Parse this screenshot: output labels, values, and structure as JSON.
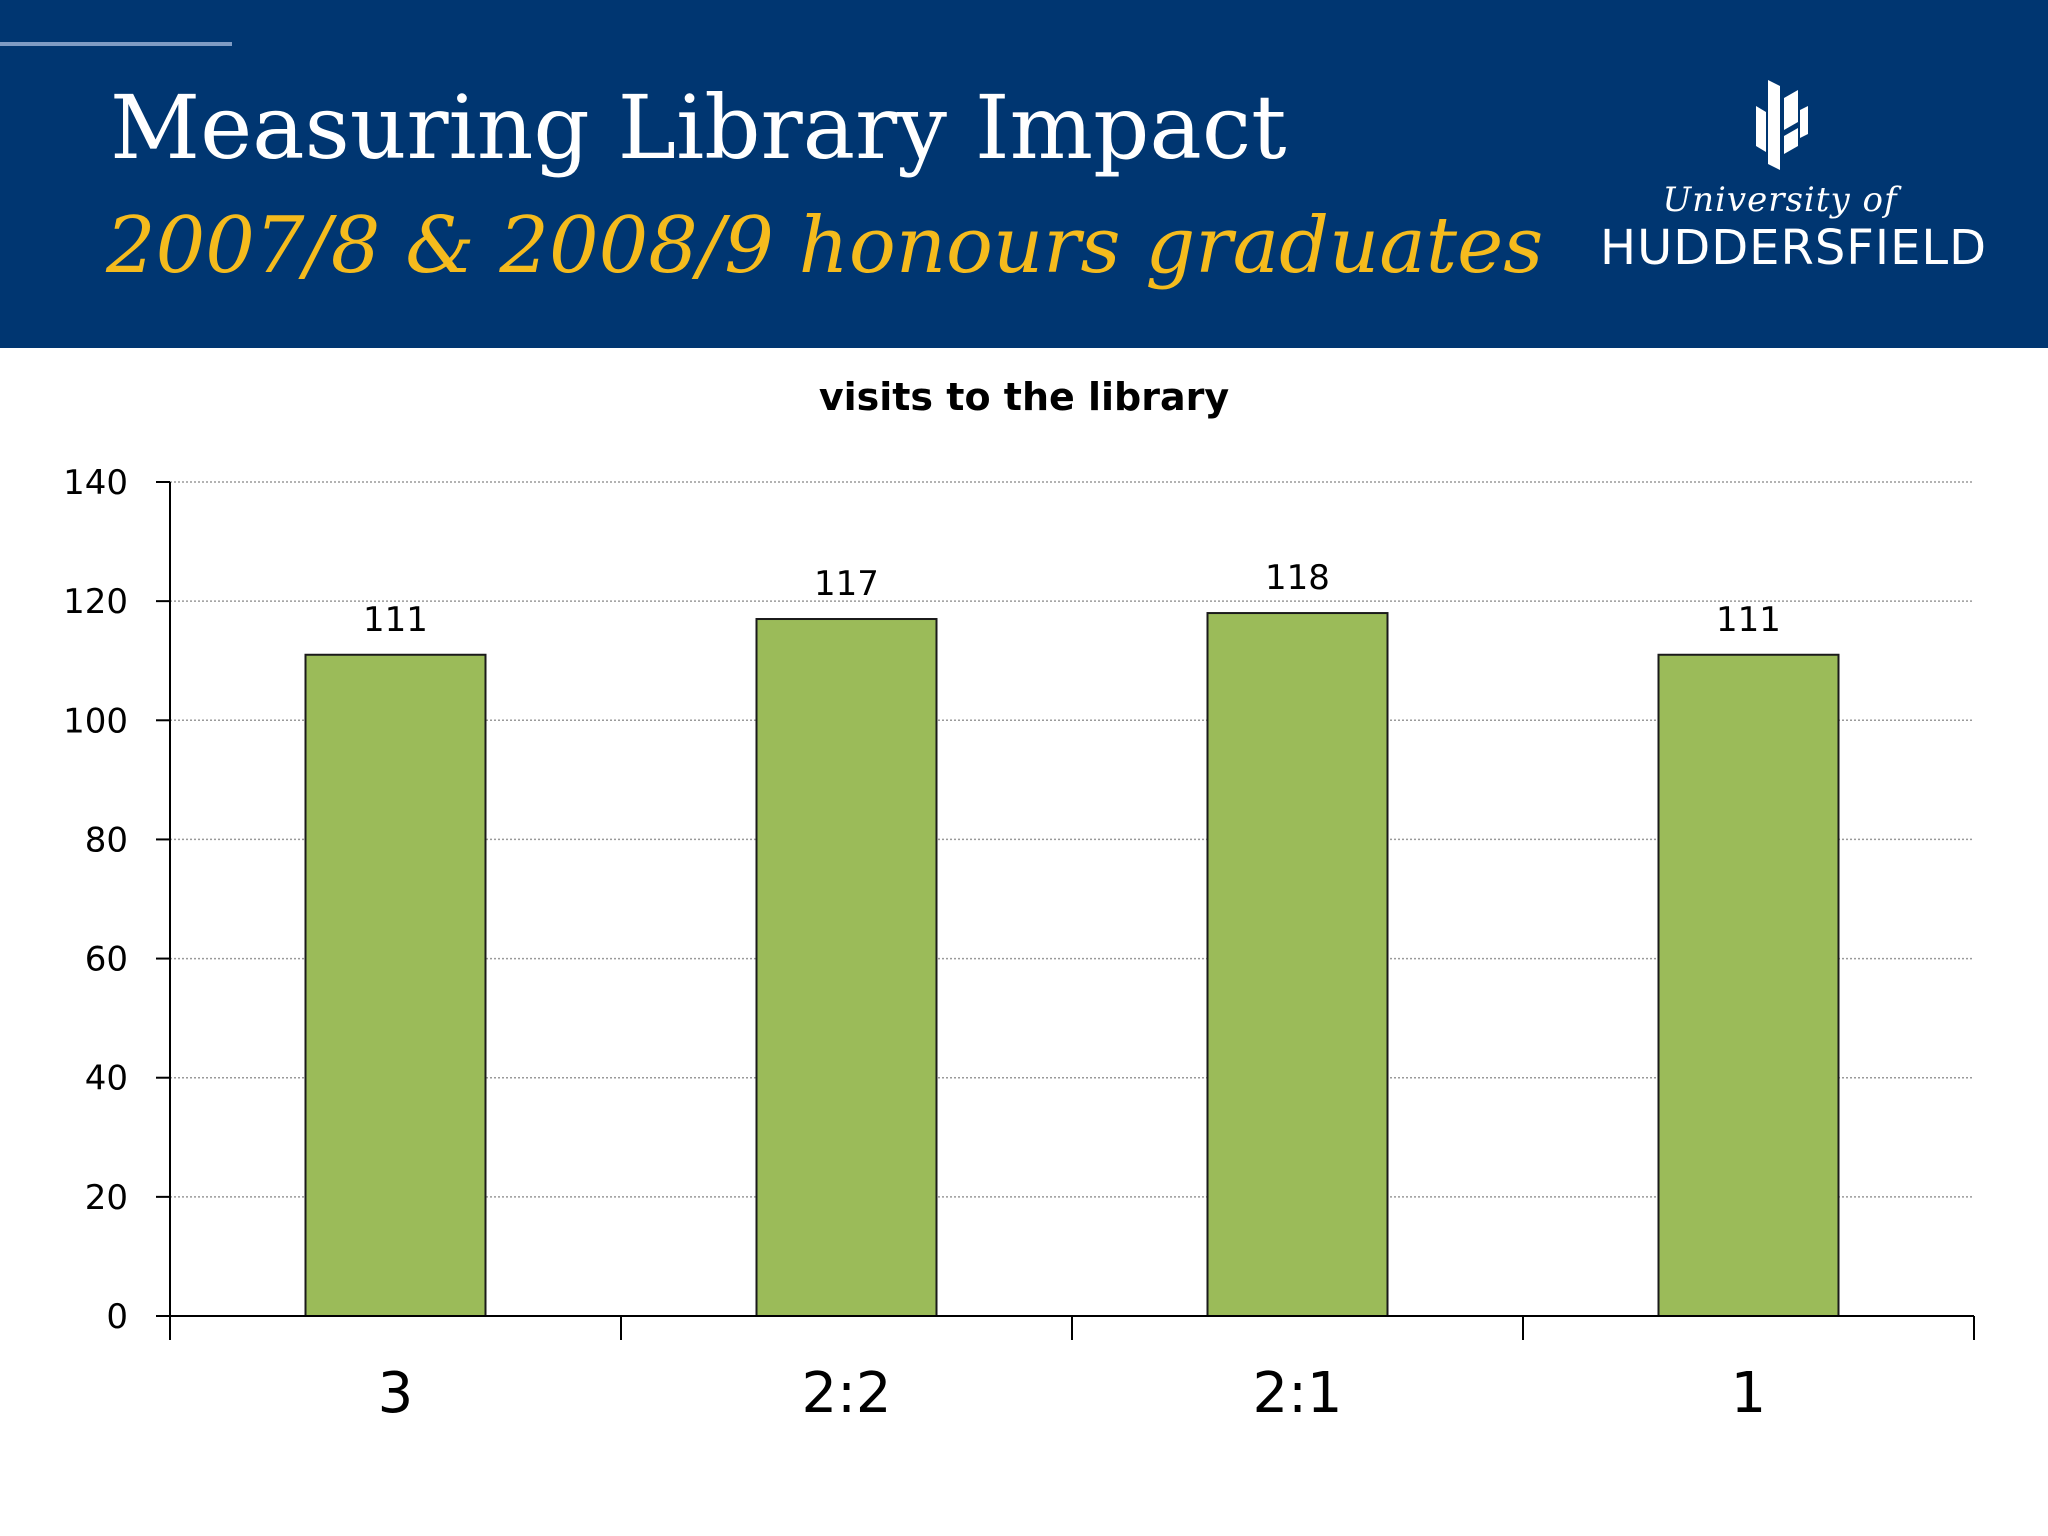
{
  "header": {
    "title": "Measuring Library Impact",
    "subtitle": "2007/8 & 2008/9 honours graduates",
    "logo_line1": "University of",
    "logo_line2": "HUDDERSFIELD"
  },
  "colors": {
    "header_bg": "#003671",
    "subtitle": "#f5bb1d",
    "bar_fill": "#9bbb59",
    "bar_stroke": "#1a1a1a"
  },
  "chart_data": {
    "type": "bar",
    "title": "visits to the library",
    "xlabel": "",
    "ylabel": "",
    "categories": [
      "3",
      "2:2",
      "2:1",
      "1"
    ],
    "values": [
      111,
      117,
      118,
      111
    ],
    "data_labels": [
      "111",
      "117",
      "118",
      "111"
    ],
    "ylim": [
      0,
      140
    ],
    "yticks": [
      0,
      20,
      40,
      60,
      80,
      100,
      120,
      140
    ],
    "grid": true,
    "legend": "none"
  }
}
